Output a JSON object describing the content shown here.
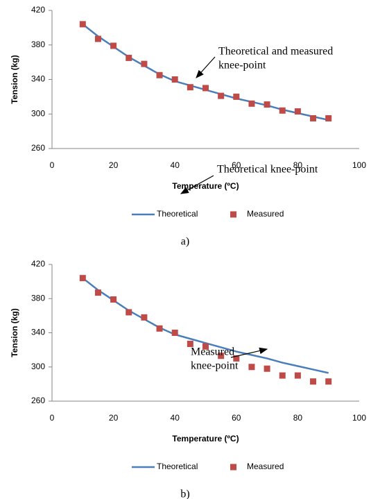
{
  "chart_data": [
    {
      "type": "line",
      "caption": "a)",
      "x_label": "Temperature (ºC)",
      "y_label": "Tension (kg)",
      "xlim": [
        0,
        100
      ],
      "xticks": [
        0,
        20,
        40,
        60,
        80,
        100
      ],
      "ylim": [
        260,
        420
      ],
      "yticks": [
        260,
        300,
        340,
        380,
        420
      ],
      "grid": false,
      "annotations": [
        {
          "lines": [
            "Theoretical and measured",
            "knee-point"
          ]
        }
      ],
      "series": [
        {
          "name": "Theoretical",
          "color": "#4a7ebb",
          "mark": "line",
          "x": [
            10,
            15,
            20,
            25,
            30,
            35,
            40,
            45,
            50,
            55,
            60,
            65,
            70,
            75,
            80,
            85,
            90
          ],
          "values": [
            404,
            390,
            378,
            366,
            356,
            346,
            338,
            333,
            328,
            323,
            318,
            314,
            310,
            305,
            301,
            297,
            293
          ]
        },
        {
          "name": "Measured",
          "color": "#be4b48",
          "mark": "square",
          "x": [
            10,
            15,
            20,
            25,
            30,
            35,
            40,
            45,
            50,
            55,
            60,
            65,
            70,
            75,
            80,
            85,
            90
          ],
          "values": [
            404,
            387,
            379,
            365,
            358,
            345,
            340,
            331,
            330,
            321,
            320,
            312,
            311,
            304,
            303,
            295,
            295
          ]
        }
      ]
    },
    {
      "type": "line",
      "caption": "b)",
      "x_label": "Temperature (ºC)",
      "y_label": "Tension (kg)",
      "xlim": [
        0,
        100
      ],
      "xticks": [
        0,
        20,
        40,
        60,
        80,
        100
      ],
      "ylim": [
        260,
        420
      ],
      "yticks": [
        260,
        300,
        340,
        380,
        420
      ],
      "grid": false,
      "annotations": [
        {
          "lines": [
            "Theoretical knee-point"
          ]
        },
        {
          "lines": [
            "Measured",
            "knee-point"
          ]
        }
      ],
      "series": [
        {
          "name": "Theoretical",
          "color": "#4a7ebb",
          "mark": "line",
          "x": [
            10,
            15,
            20,
            25,
            30,
            35,
            40,
            45,
            50,
            55,
            60,
            65,
            70,
            75,
            80,
            85,
            90
          ],
          "values": [
            404,
            390,
            378,
            366,
            356,
            346,
            338,
            333,
            328,
            323,
            318,
            314,
            310,
            305,
            301,
            297,
            293
          ]
        },
        {
          "name": "Measured",
          "color": "#be4b48",
          "mark": "square",
          "x": [
            10,
            15,
            20,
            25,
            30,
            35,
            40,
            45,
            50,
            55,
            60,
            65,
            70,
            75,
            80,
            85,
            90
          ],
          "values": [
            404,
            387,
            379,
            364,
            358,
            345,
            340,
            327,
            324,
            313,
            310,
            300,
            298,
            290,
            290,
            283,
            283
          ]
        }
      ]
    }
  ]
}
